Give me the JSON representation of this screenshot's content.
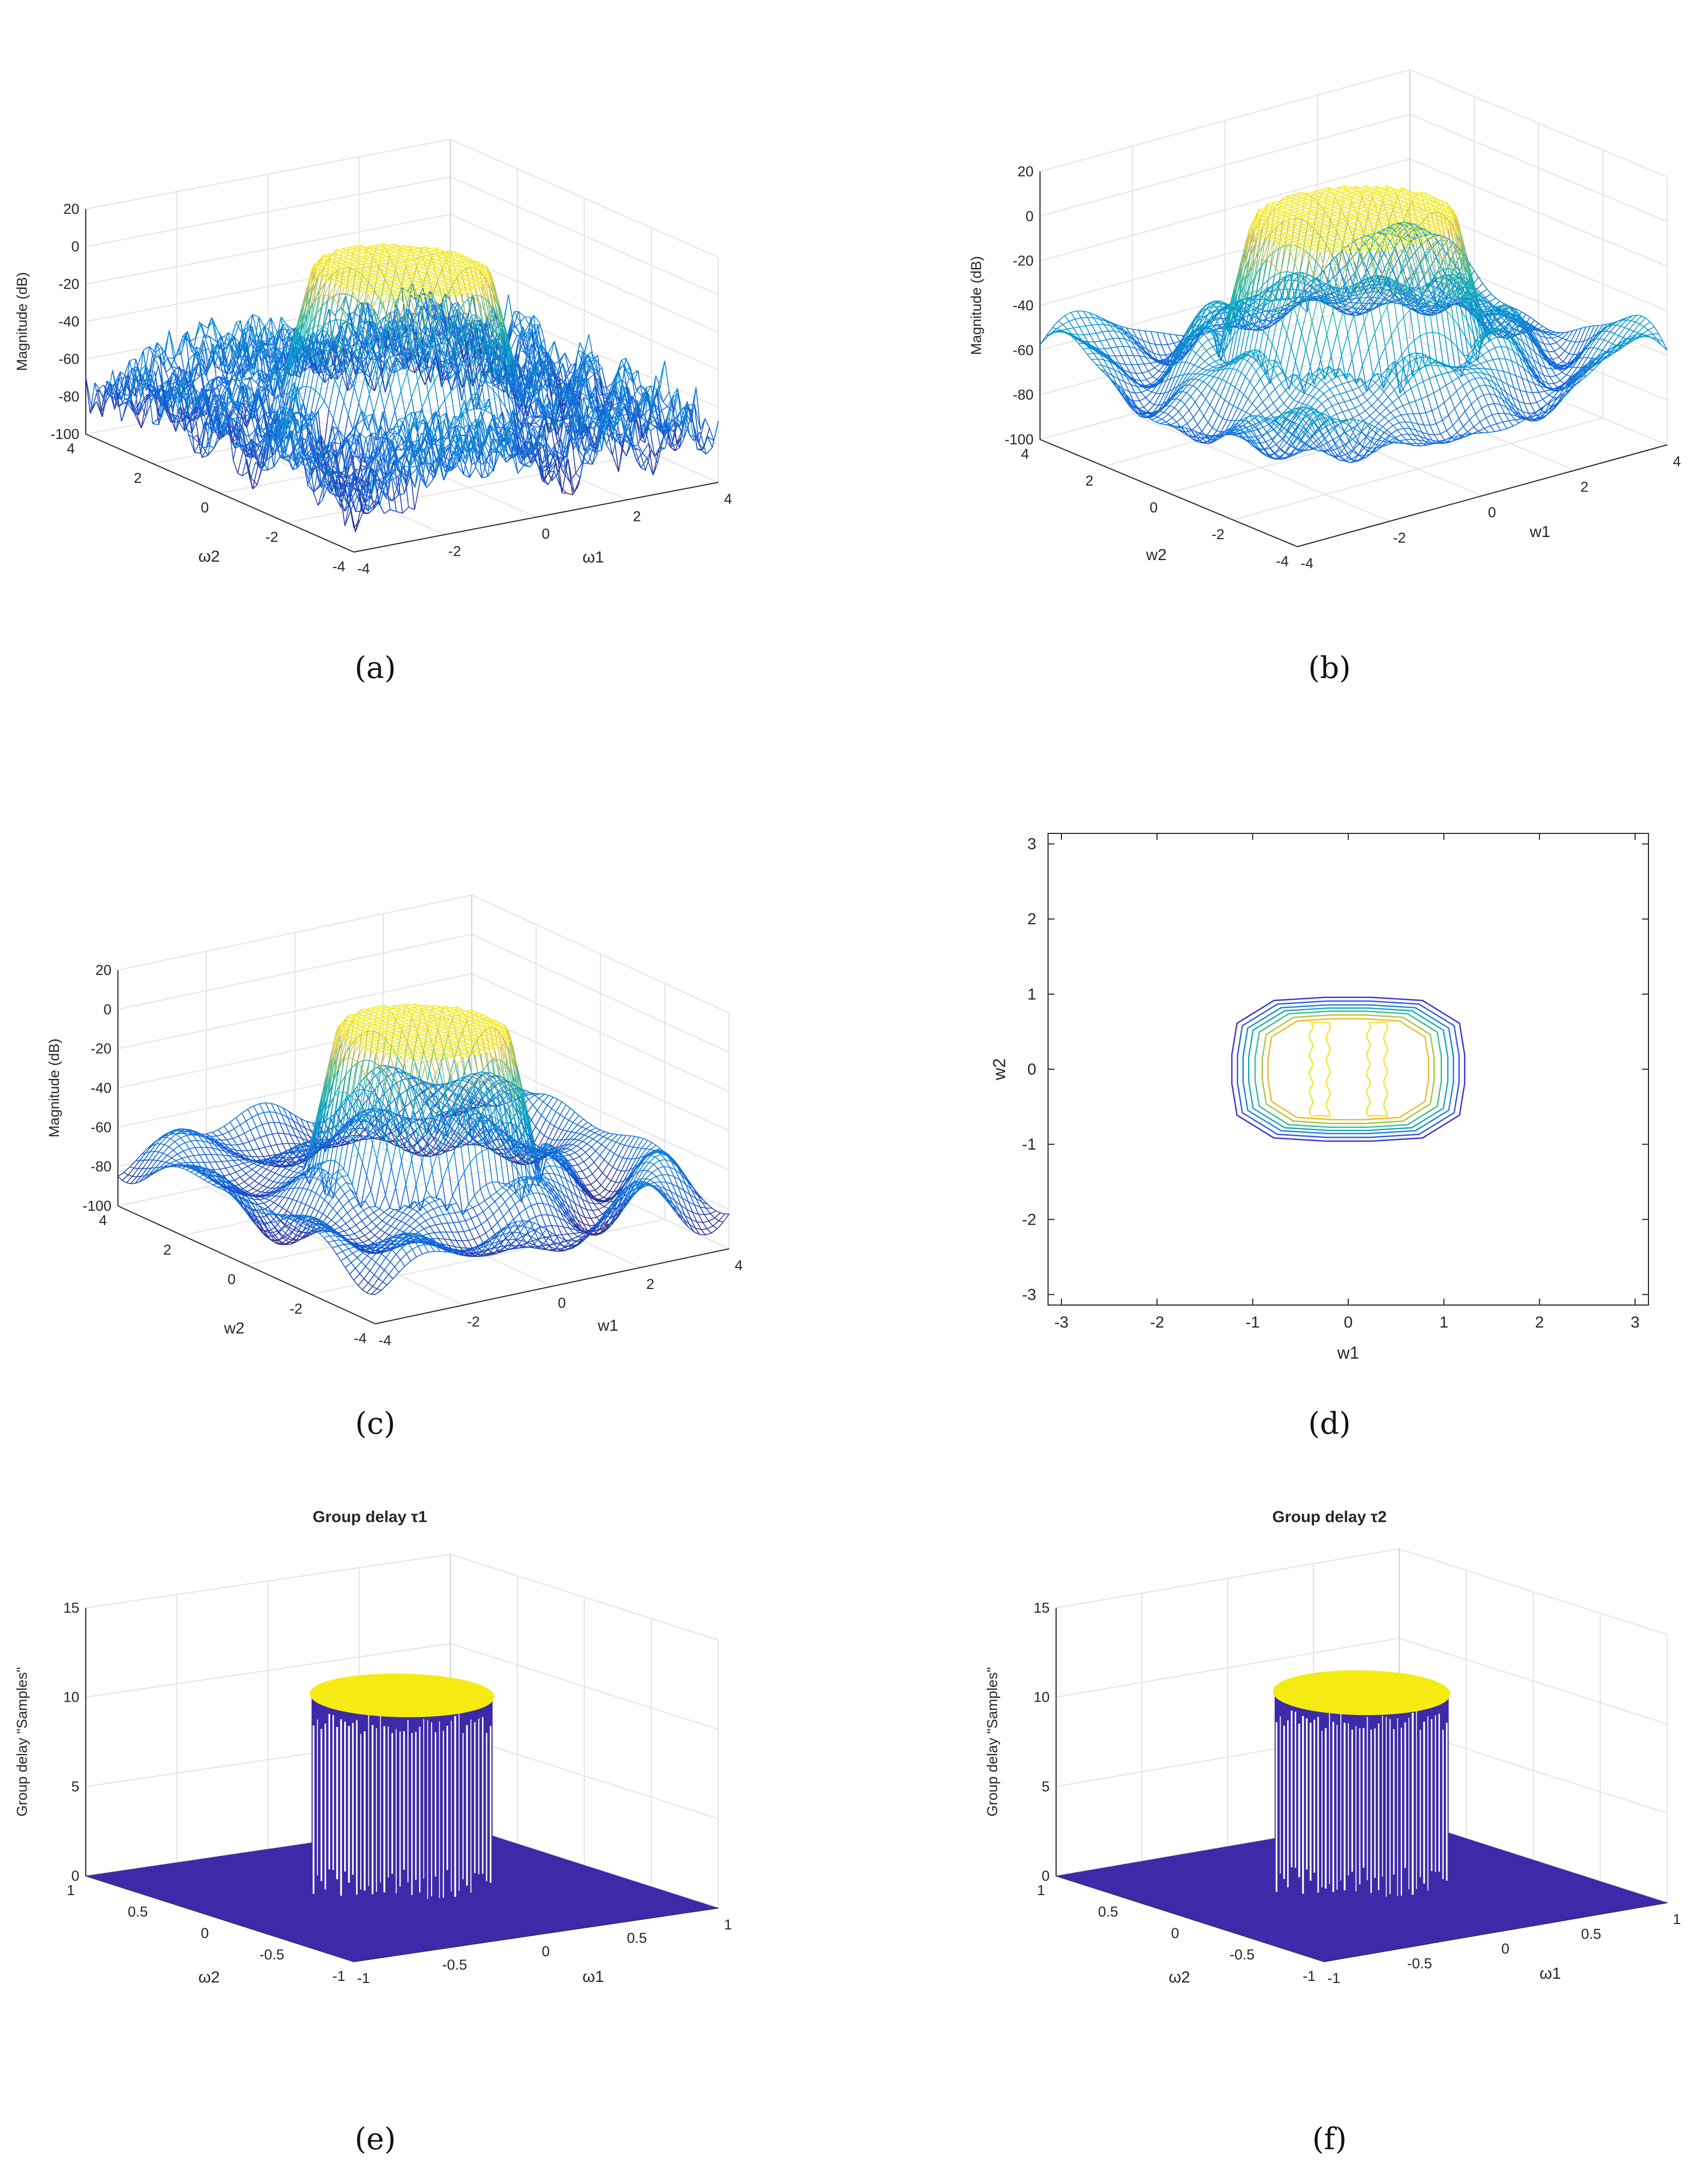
{
  "figure": {
    "panel_labels": [
      "(a)",
      "(b)",
      "(c)",
      "(d)",
      "(e)",
      "(f)"
    ]
  },
  "chart_data": [
    {
      "panel": "a",
      "type": "surface-mesh",
      "title": "",
      "zlabel": "Magnitude (dB)",
      "xlabel": "ω1",
      "ylabel": "ω2",
      "x_ticks": [
        -4,
        -2,
        0,
        2,
        4
      ],
      "y_ticks": [
        -4,
        -2,
        0,
        2,
        4
      ],
      "z_ticks": [
        -100,
        -80,
        -60,
        -40,
        -20,
        0,
        20
      ],
      "xlim": [
        -4,
        4
      ],
      "ylim": [
        -4,
        4
      ],
      "zlim": [
        -100,
        20
      ],
      "passband_level_db": 0,
      "stopband_level_db": -70,
      "passband_radius": 1.3,
      "colormap": "parula"
    },
    {
      "panel": "b",
      "type": "surface-mesh",
      "title": "",
      "zlabel": "Magnitude (dB)",
      "xlabel": "w1",
      "ylabel": "w2",
      "x_ticks": [
        -4,
        -2,
        0,
        2,
        4
      ],
      "y_ticks": [
        -4,
        -2,
        0,
        2,
        4
      ],
      "z_ticks": [
        -100,
        -80,
        -60,
        -40,
        -20,
        0,
        20
      ],
      "xlim": [
        -4,
        4
      ],
      "ylim": [
        -4,
        4
      ],
      "zlim": [
        -100,
        20
      ],
      "passband_level_db": 0,
      "stopband_level_db": -60,
      "passband_radius": 1.5,
      "colormap": "parula"
    },
    {
      "panel": "c",
      "type": "surface-mesh",
      "title": "",
      "zlabel": "Magnitude (dB)",
      "xlabel": "w1",
      "ylabel": "w2",
      "x_ticks": [
        -4,
        -2,
        0,
        2,
        4
      ],
      "y_ticks": [
        -4,
        -2,
        0,
        2,
        4
      ],
      "z_ticks": [
        -100,
        -80,
        -60,
        -40,
        -20,
        0,
        20
      ],
      "xlim": [
        -4,
        4
      ],
      "ylim": [
        -4,
        4
      ],
      "zlim": [
        -100,
        20
      ],
      "passband_level_db": 0,
      "stopband_level_db": -75,
      "passband_radius": 1.3,
      "colormap": "parula"
    },
    {
      "panel": "d",
      "type": "contour",
      "title": "",
      "xlabel": "w1",
      "ylabel": "w2",
      "x_ticks": [
        -3,
        -2,
        -1,
        0,
        1,
        2,
        3
      ],
      "y_ticks": [
        -3,
        -2,
        -1,
        0,
        1,
        2,
        3
      ],
      "xlim": [
        -3.14,
        3.14
      ],
      "ylim": [
        -3.14,
        3.14
      ],
      "contours": [
        {
          "level": 1,
          "rx": 1.45,
          "ry": 1.14,
          "color": "#3f2fd0"
        },
        {
          "level": 2,
          "rx": 1.38,
          "ry": 1.08,
          "color": "#2e59e8"
        },
        {
          "level": 3,
          "rx": 1.31,
          "ry": 1.02,
          "color": "#1a84d8"
        },
        {
          "level": 4,
          "rx": 1.24,
          "ry": 0.97,
          "color": "#13a7c4"
        },
        {
          "level": 5,
          "rx": 1.16,
          "ry": 0.92,
          "color": "#3bbd8f"
        },
        {
          "level": 6,
          "rx": 1.07,
          "ry": 0.86,
          "color": "#a6c63d"
        },
        {
          "level": 7,
          "rx": 1.0,
          "ry": 0.8,
          "color": "#f0b82a"
        }
      ],
      "inner_islands_x": [
        -0.3,
        0.3
      ],
      "inner_islands_ylim": [
        -0.62,
        0.62
      ]
    },
    {
      "panel": "e",
      "type": "surface-3d",
      "title": "Group delay τ1",
      "zlabel": "Group delay \"Samples\"",
      "xlabel": "ω1",
      "ylabel": "ω2",
      "x_ticks": [
        -1,
        -0.5,
        0,
        0.5,
        1
      ],
      "y_ticks": [
        -1,
        -0.5,
        0,
        0.5,
        1
      ],
      "z_ticks": [
        0,
        5,
        10,
        15
      ],
      "xlim": [
        -1,
        1
      ],
      "ylim": [
        -1,
        1
      ],
      "zlim": [
        0,
        15
      ],
      "passband_delay": 11,
      "stopband_delay": 0,
      "passband_radius": 0.4
    },
    {
      "panel": "f",
      "type": "surface-3d",
      "title": "Group delay τ2",
      "zlabel": "Group delay \"Samples\"",
      "xlabel": "ω1",
      "ylabel": "ω2",
      "x_ticks": [
        -1,
        -0.5,
        0,
        0.5,
        1
      ],
      "y_ticks": [
        -1,
        -0.5,
        0,
        0.5,
        1
      ],
      "z_ticks": [
        0,
        5,
        10,
        15
      ],
      "xlim": [
        -1,
        1
      ],
      "ylim": [
        -1,
        1
      ],
      "zlim": [
        0,
        15
      ],
      "passband_delay": 11,
      "stopband_delay": 0,
      "passband_radius": 0.4
    }
  ]
}
